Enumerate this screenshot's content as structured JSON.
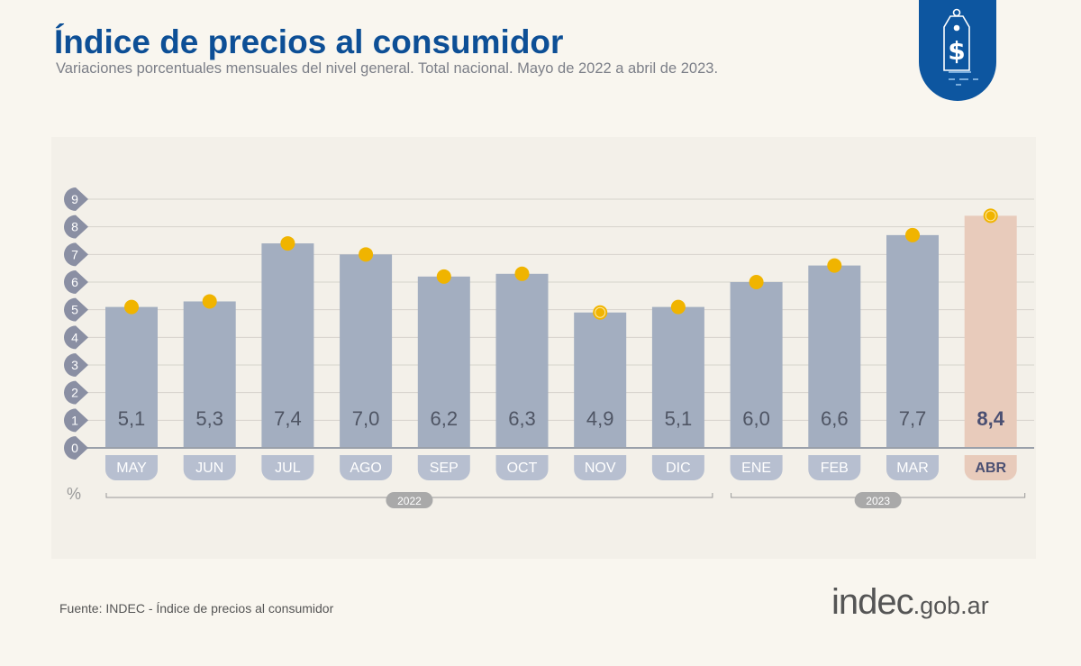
{
  "title": "Índice de precios al consumidor",
  "subtitle": "Variaciones porcentuales mensuales del nivel general. Total nacional. Mayo de 2022 a abril de 2023.",
  "source": "Fuente: INDEC - Índice de precios al consumidor",
  "brand": {
    "main": "indec",
    "suffix": ".gob.ar"
  },
  "badge_icon": "price-tag-dollar-icon",
  "colors": {
    "title": "#0d4f96",
    "bar": "#a3aec0",
    "highlight_bar": "#e8cbbb",
    "marker": "#f0b400",
    "badge": "#0d56a0"
  },
  "chart_data": {
    "type": "bar",
    "categories": [
      "MAY",
      "JUN",
      "JUL",
      "AGO",
      "SEP",
      "OCT",
      "NOV",
      "DIC",
      "ENE",
      "FEB",
      "MAR",
      "ABR"
    ],
    "values": [
      5.1,
      5.3,
      7.4,
      7.0,
      6.2,
      6.3,
      4.9,
      5.1,
      6.0,
      6.6,
      7.7,
      8.4
    ],
    "value_labels": [
      "5,1",
      "5,3",
      "7,4",
      "7,0",
      "6,2",
      "6,3",
      "4,9",
      "5,1",
      "6,0",
      "6,6",
      "7,7",
      "8,4"
    ],
    "highlighted": [
      "ABR"
    ],
    "ringed_markers": [
      "NOV",
      "ABR"
    ],
    "ylabel": "%",
    "ylim": [
      0,
      9
    ],
    "yticks": [
      0,
      1,
      2,
      3,
      4,
      5,
      6,
      7,
      8,
      9
    ],
    "grid": true,
    "year_groups": [
      {
        "label": "2022",
        "from": "MAY",
        "to": "DIC"
      },
      {
        "label": "2023",
        "from": "ENE",
        "to": "ABR"
      }
    ]
  }
}
